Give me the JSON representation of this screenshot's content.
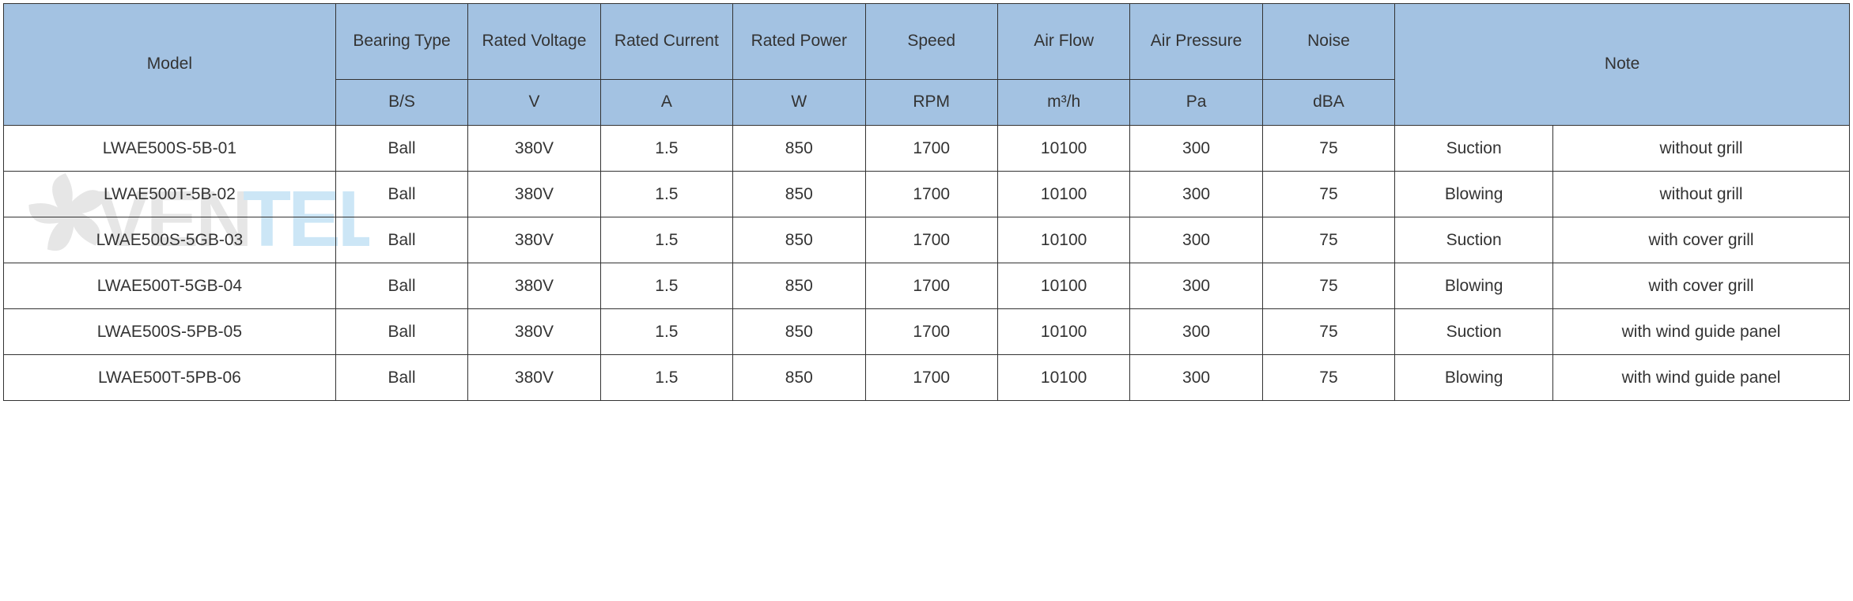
{
  "table": {
    "header_bg": "#a3c2e2",
    "border_color": "#333333",
    "font_color": "#333333",
    "header_fontsize": 21,
    "body_fontsize": 21,
    "columns": {
      "model_label": "Model",
      "bearing_label": "Bearing Type",
      "voltage_label": "Rated Voltage",
      "current_label": "Rated Current",
      "power_label": "Rated Power",
      "speed_label": "Speed",
      "airflow_label": "Air Flow",
      "pressure_label": "Air Pressure",
      "noise_label": "Noise",
      "note_label": "Note",
      "bearing_unit": "B/S",
      "voltage_unit": "V",
      "current_unit": "A",
      "power_unit": "W",
      "speed_unit": "RPM",
      "airflow_unit": "m³/h",
      "pressure_unit": "Pa",
      "noise_unit": "dBA"
    },
    "rows": [
      {
        "model": "LWAE500S-5B-01",
        "bearing": "Ball",
        "voltage": "380V",
        "current": "1.5",
        "power": "850",
        "speed": "1700",
        "airflow": "10100",
        "pressure": "300",
        "noise": "75",
        "note1": "Suction",
        "note2": "without grill"
      },
      {
        "model": "LWAE500T-5B-02",
        "bearing": "Ball",
        "voltage": "380V",
        "current": "1.5",
        "power": "850",
        "speed": "1700",
        "airflow": "10100",
        "pressure": "300",
        "noise": "75",
        "note1": "Blowing",
        "note2": "without grill"
      },
      {
        "model": "LWAE500S-5GB-03",
        "bearing": "Ball",
        "voltage": "380V",
        "current": "1.5",
        "power": "850",
        "speed": "1700",
        "airflow": "10100",
        "pressure": "300",
        "noise": "75",
        "note1": "Suction",
        "note2": "with cover grill"
      },
      {
        "model": "LWAE500T-5GB-04",
        "bearing": "Ball",
        "voltage": "380V",
        "current": "1.5",
        "power": "850",
        "speed": "1700",
        "airflow": "10100",
        "pressure": "300",
        "noise": "75",
        "note1": "Blowing",
        "note2": "with cover grill"
      },
      {
        "model": "LWAE500S-5PB-05",
        "bearing": "Ball",
        "voltage": "380V",
        "current": "1.5",
        "power": "850",
        "speed": "1700",
        "airflow": "10100",
        "pressure": "300",
        "noise": "75",
        "note1": "Suction",
        "note2": "with wind guide panel"
      },
      {
        "model": "LWAE500T-5PB-06",
        "bearing": "Ball",
        "voltage": "380V",
        "current": "1.5",
        "power": "850",
        "speed": "1700",
        "airflow": "10100",
        "pressure": "300",
        "noise": "75",
        "note1": "Blowing",
        "note2": "with wind guide panel"
      }
    ]
  },
  "watermark": {
    "text_gray": "VEN",
    "text_blue": "TEL",
    "color_gray": "#b9b9b9",
    "color_blue": "#6fb8e6",
    "opacity": 0.35
  }
}
